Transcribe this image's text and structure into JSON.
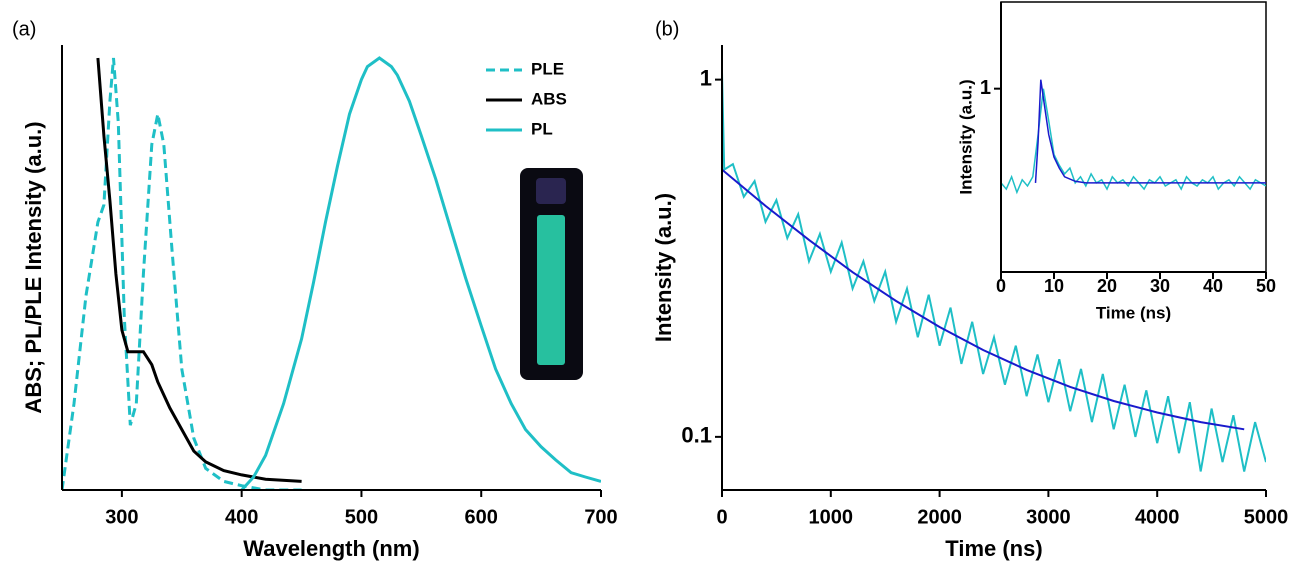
{
  "chart_data": [
    {
      "type": "line",
      "panel_label": "(a)",
      "xlabel": "Wavelength (nm)",
      "ylabel": "ABS; PL/PLE Intensity (a.u.)",
      "xlim": [
        250,
        700
      ],
      "xticks": [
        300,
        400,
        500,
        600,
        700
      ],
      "ylim": [
        0,
        1.03
      ],
      "yticks": [],
      "yscale": "linear",
      "legend": "upper right",
      "series": [
        {
          "name": "PLE",
          "color": "#1fbfc6",
          "style": "dashed",
          "x": [
            250,
            260,
            270,
            280,
            285,
            290,
            293,
            297,
            302,
            307,
            312,
            318,
            325,
            330,
            335,
            342,
            350,
            360,
            370,
            385,
            400,
            420,
            450
          ],
          "values": [
            0.0,
            0.2,
            0.45,
            0.62,
            0.66,
            0.9,
            1.0,
            0.85,
            0.4,
            0.15,
            0.2,
            0.5,
            0.8,
            0.87,
            0.8,
            0.55,
            0.28,
            0.12,
            0.05,
            0.02,
            0.01,
            0.0,
            0.0
          ]
        },
        {
          "name": "ABS",
          "color": "#000000",
          "style": "solid",
          "x": [
            280,
            285,
            290,
            295,
            300,
            305,
            312,
            318,
            325,
            330,
            340,
            350,
            360,
            370,
            385,
            400,
            420,
            450
          ],
          "values": [
            1.0,
            0.82,
            0.67,
            0.5,
            0.37,
            0.32,
            0.32,
            0.32,
            0.29,
            0.25,
            0.19,
            0.14,
            0.09,
            0.065,
            0.045,
            0.035,
            0.025,
            0.02
          ]
        },
        {
          "name": "PL",
          "color": "#1fbfc6",
          "style": "solid",
          "x": [
            400,
            410,
            420,
            435,
            450,
            460,
            470,
            480,
            490,
            500,
            505,
            515,
            525,
            530,
            540,
            550,
            562,
            575,
            587,
            600,
            612,
            625,
            637,
            650,
            662,
            675,
            687,
            700
          ],
          "values": [
            0.0,
            0.03,
            0.08,
            0.2,
            0.35,
            0.48,
            0.62,
            0.75,
            0.87,
            0.95,
            0.98,
            1.0,
            0.98,
            0.96,
            0.9,
            0.82,
            0.72,
            0.6,
            0.49,
            0.38,
            0.28,
            0.2,
            0.14,
            0.1,
            0.07,
            0.04,
            0.03,
            0.02
          ]
        }
      ]
    },
    {
      "type": "line",
      "panel_label": "(b)",
      "xlabel": "Time (ns)",
      "ylabel": "Intensity (a.u.)",
      "xlim": [
        0,
        5000
      ],
      "xticks": [
        0,
        1000,
        2000,
        3000,
        4000,
        5000
      ],
      "ylim": [
        0.071,
        1.25
      ],
      "yticks": [
        0.1,
        1
      ],
      "yscale": "log",
      "series": [
        {
          "color": "#1fbfc6",
          "style": "solid",
          "x": [
            0,
            20,
            100,
            200,
            300,
            400,
            500,
            600,
            700,
            800,
            900,
            1000,
            1100,
            1200,
            1300,
            1400,
            1500,
            1600,
            1700,
            1800,
            1900,
            2000,
            2100,
            2200,
            2300,
            2400,
            2500,
            2600,
            2700,
            2800,
            2900,
            3000,
            3100,
            3200,
            3300,
            3400,
            3500,
            3600,
            3700,
            3800,
            3900,
            4000,
            4100,
            4200,
            4300,
            4400,
            4500,
            4600,
            4700,
            4800,
            4900,
            5000
          ],
          "values": [
            1.05,
            0.56,
            0.58,
            0.47,
            0.52,
            0.4,
            0.46,
            0.36,
            0.42,
            0.31,
            0.37,
            0.29,
            0.35,
            0.26,
            0.31,
            0.24,
            0.29,
            0.21,
            0.26,
            0.19,
            0.25,
            0.18,
            0.23,
            0.16,
            0.21,
            0.15,
            0.19,
            0.14,
            0.18,
            0.13,
            0.17,
            0.125,
            0.165,
            0.118,
            0.155,
            0.11,
            0.15,
            0.105,
            0.14,
            0.1,
            0.135,
            0.096,
            0.13,
            0.09,
            0.125,
            0.08,
            0.12,
            0.085,
            0.115,
            0.08,
            0.11,
            0.085
          ]
        },
        {
          "color": "#1a1acc",
          "style": "solid",
          "x": [
            0,
            400,
            800,
            1200,
            1600,
            2000,
            2400,
            2800,
            3200,
            3600,
            4000,
            4400,
            4800
          ],
          "values": [
            0.56,
            0.443,
            0.356,
            0.289,
            0.24,
            0.203,
            0.175,
            0.154,
            0.138,
            0.126,
            0.117,
            0.11,
            0.105
          ]
        }
      ]
    },
    {
      "type": "line",
      "xlabel": "Time (ns)",
      "ylabel": "Intensity (a.u.)",
      "xlim": [
        0,
        50
      ],
      "xticks": [
        0,
        10,
        20,
        30,
        40,
        50
      ],
      "ylim": [
        0.37,
        1.6
      ],
      "yticks": [
        1
      ],
      "yscale": "log",
      "series": [
        {
          "color": "#1fbfc6",
          "style": "solid",
          "x": [
            0,
            1,
            2,
            3,
            4,
            5,
            6,
            7,
            8,
            9,
            10,
            11,
            12,
            13,
            14,
            15,
            16,
            17,
            18,
            19,
            20,
            21,
            22,
            23,
            24,
            25,
            26,
            27,
            28,
            29,
            30,
            31,
            32,
            33,
            34,
            35,
            36,
            37,
            38,
            39,
            40,
            41,
            42,
            43,
            44,
            45,
            46,
            47,
            48,
            49,
            50
          ],
          "values": [
            0.6,
            0.58,
            0.62,
            0.57,
            0.61,
            0.59,
            0.62,
            0.78,
            1.0,
            0.84,
            0.7,
            0.66,
            0.63,
            0.65,
            0.6,
            0.62,
            0.59,
            0.63,
            0.6,
            0.61,
            0.58,
            0.62,
            0.6,
            0.61,
            0.59,
            0.62,
            0.6,
            0.58,
            0.61,
            0.6,
            0.62,
            0.59,
            0.6,
            0.61,
            0.58,
            0.62,
            0.6,
            0.59,
            0.61,
            0.6,
            0.62,
            0.58,
            0.6,
            0.61,
            0.59,
            0.62,
            0.6,
            0.58,
            0.61,
            0.6,
            0.59
          ]
        },
        {
          "color": "#1a1acc",
          "style": "solid",
          "x": [
            6.5,
            7,
            7.5,
            8,
            9,
            10,
            11,
            12,
            14,
            16,
            20,
            30,
            40,
            50
          ],
          "values": [
            0.6,
            0.75,
            1.05,
            0.95,
            0.78,
            0.69,
            0.65,
            0.62,
            0.605,
            0.6,
            0.6,
            0.6,
            0.6,
            0.6
          ]
        }
      ]
    }
  ]
}
